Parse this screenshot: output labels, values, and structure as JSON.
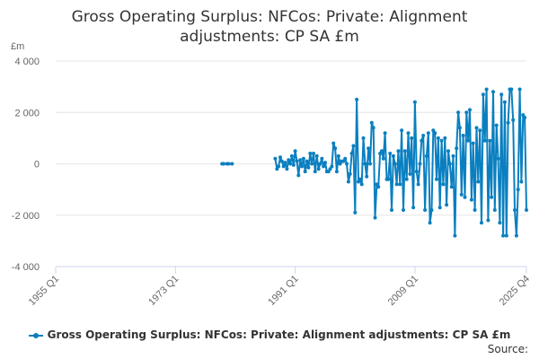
{
  "chart_data": {
    "type": "line",
    "title_line1": "Gross Operating Surplus: NFCos: Private: Alignment",
    "title_line2": "adjustments: CP SA £m",
    "y_unit": "£m",
    "y_ticks": [
      "4 000",
      "2 000",
      "0",
      "-2 000",
      "-4 000"
    ],
    "y_tick_values": [
      4000,
      2000,
      0,
      -2000,
      -4000
    ],
    "ylim": [
      -4000,
      4000
    ],
    "x_ticks": [
      "1955 Q1",
      "1973 Q1",
      "1991 Q1",
      "2009 Q1",
      "2025 Q4"
    ],
    "x_tick_values": [
      1955.0,
      1973.0,
      1991.0,
      2009.0,
      2025.75
    ],
    "xlim": [
      1955.0,
      2025.75
    ],
    "grid": true,
    "legend_position": "bottom",
    "color": "#0a7fc0",
    "series": [
      {
        "name": "Gross Operating Surplus: NFCos: Private: Alignment adjustments: CP SA £m",
        "segments": [
          [
            [
              1980.0,
              0
            ],
            [
              1980.25,
              0
            ]
          ],
          [
            [
              1980.75,
              0
            ],
            [
              1981.0,
              0
            ]
          ],
          [
            [
              1981.5,
              0
            ]
          ],
          [
            [
              1988.0,
              200
            ],
            [
              1988.25,
              -200
            ],
            [
              1988.5,
              -100
            ],
            [
              1988.75,
              250
            ],
            [
              1989.0,
              100
            ],
            [
              1989.25,
              -100
            ],
            [
              1989.5,
              50
            ],
            [
              1989.75,
              -200
            ],
            [
              1990.0,
              150
            ],
            [
              1990.25,
              0
            ],
            [
              1990.5,
              300
            ],
            [
              1990.75,
              -50
            ],
            [
              1991.0,
              500
            ],
            [
              1991.25,
              100
            ],
            [
              1991.5,
              -450
            ],
            [
              1991.75,
              150
            ],
            [
              1992.0,
              -100
            ],
            [
              1992.25,
              200
            ],
            [
              1992.5,
              -300
            ],
            [
              1992.75,
              100
            ],
            [
              1993.0,
              -150
            ],
            [
              1993.25,
              400
            ],
            [
              1993.5,
              0
            ],
            [
              1993.75,
              400
            ],
            [
              1994.0,
              -300
            ],
            [
              1994.25,
              300
            ],
            [
              1994.5,
              -200
            ],
            [
              1994.75,
              0
            ],
            [
              1995.0,
              200
            ],
            [
              1995.25,
              -100
            ],
            [
              1995.5,
              50
            ],
            [
              1995.75,
              -300
            ],
            [
              1996.0,
              -300
            ],
            [
              1996.25,
              -200
            ],
            [
              1996.5,
              -100
            ],
            [
              1996.75,
              800
            ],
            [
              1997.0,
              600
            ],
            [
              1997.25,
              -300
            ],
            [
              1997.5,
              300
            ],
            [
              1997.75,
              0
            ],
            [
              1998.0,
              100
            ],
            [
              1998.25,
              100
            ],
            [
              1998.5,
              200
            ],
            [
              1998.75,
              0
            ],
            [
              1999.0,
              -700
            ],
            [
              1999.25,
              -400
            ],
            [
              1999.5,
              400
            ],
            [
              1999.75,
              700
            ],
            [
              2000.0,
              -1900
            ],
            [
              2000.25,
              2500
            ],
            [
              2000.5,
              -700
            ],
            [
              2000.75,
              -600
            ],
            [
              2001.0,
              -800
            ],
            [
              2001.25,
              1000
            ],
            [
              2001.5,
              0
            ],
            [
              2001.75,
              -500
            ],
            [
              2002.0,
              600
            ],
            [
              2002.25,
              0
            ],
            [
              2002.5,
              1600
            ],
            [
              2002.75,
              1400
            ],
            [
              2003.0,
              -2100
            ],
            [
              2003.25,
              -800
            ],
            [
              2003.5,
              -900
            ],
            [
              2003.75,
              400
            ],
            [
              2004.0,
              500
            ],
            [
              2004.25,
              200
            ],
            [
              2004.5,
              1200
            ],
            [
              2004.75,
              -600
            ],
            [
              2005.0,
              -600
            ],
            [
              2005.25,
              400
            ],
            [
              2005.5,
              -1800
            ],
            [
              2005.75,
              300
            ],
            [
              2006.0,
              0
            ],
            [
              2006.25,
              -800
            ],
            [
              2006.5,
              500
            ],
            [
              2006.75,
              -800
            ],
            [
              2007.0,
              1300
            ],
            [
              2007.25,
              -1800
            ],
            [
              2007.5,
              500
            ],
            [
              2007.75,
              -600
            ],
            [
              2008.0,
              1200
            ],
            [
              2008.25,
              -400
            ],
            [
              2008.5,
              1000
            ],
            [
              2008.75,
              -1700
            ],
            [
              2009.0,
              2400
            ],
            [
              2009.25,
              -300
            ],
            [
              2009.5,
              -800
            ],
            [
              2009.75,
              0
            ],
            [
              2010.0,
              900
            ],
            [
              2010.25,
              1100
            ],
            [
              2010.5,
              -1800
            ],
            [
              2010.75,
              300
            ],
            [
              2011.0,
              1200
            ],
            [
              2011.25,
              -2300
            ],
            [
              2011.5,
              -1800
            ],
            [
              2011.75,
              1300
            ],
            [
              2012.0,
              1200
            ],
            [
              2012.25,
              -600
            ],
            [
              2012.5,
              1000
            ],
            [
              2012.75,
              -1700
            ],
            [
              2013.0,
              900
            ],
            [
              2013.25,
              -800
            ],
            [
              2013.5,
              1000
            ],
            [
              2013.75,
              -1600
            ],
            [
              2014.0,
              500
            ],
            [
              2014.25,
              0
            ],
            [
              2014.5,
              -900
            ],
            [
              2014.75,
              300
            ],
            [
              2015.0,
              -2800
            ],
            [
              2015.25,
              600
            ],
            [
              2015.5,
              2000
            ],
            [
              2015.75,
              1400
            ],
            [
              2016.0,
              -1200
            ],
            [
              2016.25,
              1100
            ],
            [
              2016.5,
              -1300
            ],
            [
              2016.75,
              2000
            ],
            [
              2017.0,
              900
            ],
            [
              2017.25,
              2100
            ],
            [
              2017.5,
              -1400
            ],
            [
              2017.75,
              800
            ],
            [
              2018.0,
              -1800
            ],
            [
              2018.25,
              1400
            ],
            [
              2018.5,
              -700
            ],
            [
              2018.75,
              1300
            ],
            [
              2019.0,
              -2300
            ],
            [
              2019.25,
              2700
            ],
            [
              2019.5,
              900
            ],
            [
              2019.75,
              2900
            ],
            [
              2020.0,
              -2200
            ],
            [
              2020.25,
              900
            ],
            [
              2020.5,
              -1300
            ],
            [
              2020.75,
              2800
            ],
            [
              2021.0,
              -1800
            ],
            [
              2021.25,
              1500
            ],
            [
              2021.5,
              200
            ],
            [
              2021.75,
              -2300
            ],
            [
              2022.0,
              2700
            ],
            [
              2022.25,
              -2800
            ],
            [
              2022.5,
              2400
            ],
            [
              2022.75,
              -2800
            ],
            [
              2023.0,
              1600
            ],
            [
              2023.25,
              2900
            ],
            [
              2023.5,
              2900
            ],
            [
              2023.75,
              1700
            ],
            [
              2024.0,
              -1800
            ],
            [
              2024.25,
              -2800
            ],
            [
              2024.5,
              -1000
            ],
            [
              2024.75,
              2900
            ],
            [
              2025.0,
              -700
            ],
            [
              2025.25,
              1900
            ],
            [
              2025.5,
              1800
            ],
            [
              2025.75,
              -1800
            ]
          ]
        ]
      }
    ]
  },
  "legend": {
    "label": "Gross Operating Surplus: NFCos: Private: Alignment adjustments: CP SA £m"
  },
  "footer": {
    "source_label": "Source:"
  }
}
